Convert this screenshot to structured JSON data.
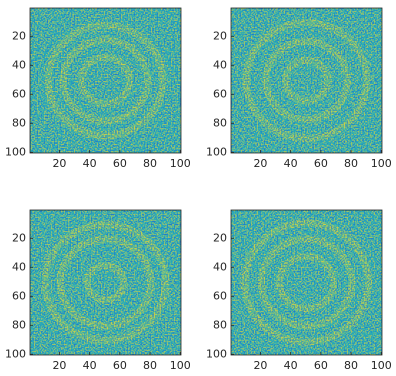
{
  "chart_data": [
    {
      "type": "image",
      "xlim": [
        0.5,
        100.5
      ],
      "ylim": [
        0.5,
        100.5
      ],
      "y_reversed": true,
      "xticks": [
        20,
        40,
        60,
        80,
        100
      ],
      "yticks": [
        20,
        40,
        60,
        80,
        100
      ]
    },
    {
      "type": "image",
      "xlim": [
        0.5,
        100.5
      ],
      "ylim": [
        0.5,
        100.5
      ],
      "y_reversed": true,
      "xticks": [
        20,
        40,
        60,
        80,
        100
      ],
      "yticks": [
        20,
        40,
        60,
        80,
        100
      ]
    },
    {
      "type": "image",
      "xlim": [
        0.5,
        100.5
      ],
      "ylim": [
        0.5,
        100.5
      ],
      "y_reversed": true,
      "xticks": [
        20,
        40,
        60,
        80,
        100
      ],
      "yticks": [
        20,
        40,
        60,
        80,
        100
      ]
    },
    {
      "type": "image",
      "xlim": [
        0.5,
        100.5
      ],
      "ylim": [
        0.5,
        100.5
      ],
      "y_reversed": true,
      "xticks": [
        20,
        40,
        60,
        80,
        100
      ],
      "yticks": [
        20,
        40,
        60,
        80,
        100
      ]
    }
  ]
}
